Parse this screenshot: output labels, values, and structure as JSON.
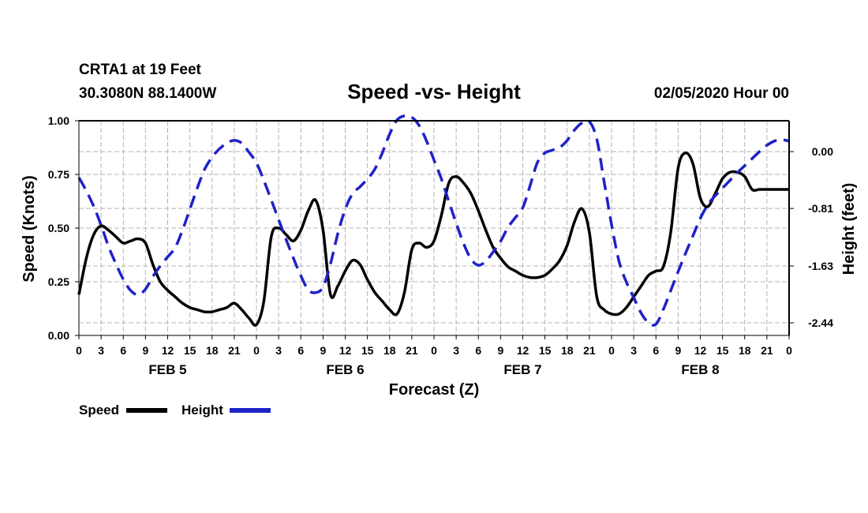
{
  "header": {
    "station_line": "CRTA1 at 19 Feet",
    "coords_line": "30.3080N 88.1400W",
    "date_line": "02/05/2020 Hour 00"
  },
  "legend": {
    "speed_label": "Speed",
    "height_label": "Height"
  },
  "colors": {
    "speed": "#000000",
    "height": "#1f22c8",
    "grid": "#b4b4b4"
  },
  "chart_data": {
    "type": "line",
    "title": "Speed -vs- Height",
    "xlabel": "Forecast (Z)",
    "ylabel": "Speed (Knots)",
    "y2label": "Height (feet)",
    "xlim": [
      0,
      96
    ],
    "ylim": [
      0,
      1.0
    ],
    "y2lim": [
      -2.62,
      0.44
    ],
    "x_ticks": [
      0,
      3,
      6,
      9,
      12,
      15,
      18,
      21,
      24,
      27,
      30,
      33,
      36,
      39,
      42,
      45,
      48,
      51,
      54,
      57,
      60,
      63,
      66,
      69,
      72,
      75,
      78,
      81,
      84,
      87,
      90,
      93,
      96
    ],
    "x_tick_labels": [
      "0",
      "3",
      "6",
      "9",
      "12",
      "15",
      "18",
      "21",
      "0",
      "3",
      "6",
      "9",
      "12",
      "15",
      "18",
      "21",
      "0",
      "3",
      "6",
      "9",
      "12",
      "15",
      "18",
      "21",
      "0",
      "3",
      "6",
      "9",
      "12",
      "15",
      "18",
      "21",
      "0"
    ],
    "day_labels": [
      {
        "x": 12,
        "label": "FEB 5"
      },
      {
        "x": 36,
        "label": "FEB 6"
      },
      {
        "x": 60,
        "label": "FEB 7"
      },
      {
        "x": 84,
        "label": "FEB 8"
      }
    ],
    "y_ticks": [
      0.0,
      0.25,
      0.5,
      0.75,
      1.0
    ],
    "y_tick_labels": [
      "0.00",
      "0.25",
      "0.50",
      "0.75",
      "1.00"
    ],
    "y2_ticks": [
      0.0,
      -0.81,
      -1.63,
      -2.44
    ],
    "y2_tick_labels": [
      "0.00",
      "-0.81",
      "-1.63",
      "-2.44"
    ],
    "grid": true,
    "legend_position": "bottom-left",
    "series": [
      {
        "name": "Speed",
        "axis": "left",
        "style": "solid",
        "x": [
          0,
          1,
          2,
          3,
          4,
          5,
          6,
          7,
          8,
          9,
          10,
          11,
          12,
          13,
          14,
          15,
          16,
          17,
          18,
          19,
          20,
          21,
          22,
          23,
          24,
          25,
          26,
          27,
          28,
          29,
          30,
          31,
          32,
          33,
          34,
          35,
          36,
          37,
          38,
          39,
          40,
          41,
          42,
          43,
          44,
          45,
          46,
          47,
          48,
          49,
          50,
          51,
          52,
          53,
          54,
          55,
          56,
          57,
          58,
          59,
          60,
          61,
          62,
          63,
          64,
          65,
          66,
          67,
          68,
          69,
          70,
          71,
          72,
          73,
          74,
          75,
          76,
          77,
          78,
          79,
          80,
          81,
          82,
          83,
          84,
          85,
          86,
          87,
          88,
          89,
          90,
          91,
          92,
          93,
          94,
          95,
          96
        ],
        "values": [
          0.19,
          0.36,
          0.47,
          0.51,
          0.49,
          0.46,
          0.43,
          0.44,
          0.45,
          0.43,
          0.33,
          0.25,
          0.21,
          0.18,
          0.15,
          0.13,
          0.12,
          0.11,
          0.11,
          0.12,
          0.13,
          0.15,
          0.12,
          0.08,
          0.05,
          0.16,
          0.46,
          0.5,
          0.47,
          0.44,
          0.49,
          0.58,
          0.63,
          0.49,
          0.19,
          0.23,
          0.3,
          0.35,
          0.33,
          0.26,
          0.2,
          0.16,
          0.12,
          0.1,
          0.2,
          0.4,
          0.43,
          0.41,
          0.44,
          0.56,
          0.71,
          0.74,
          0.71,
          0.66,
          0.58,
          0.49,
          0.41,
          0.36,
          0.32,
          0.3,
          0.28,
          0.27,
          0.27,
          0.28,
          0.31,
          0.35,
          0.42,
          0.53,
          0.59,
          0.48,
          0.18,
          0.12,
          0.1,
          0.1,
          0.13,
          0.18,
          0.23,
          0.28,
          0.3,
          0.32,
          0.48,
          0.78,
          0.85,
          0.8,
          0.64,
          0.6,
          0.66,
          0.73,
          0.76,
          0.76,
          0.74,
          0.68,
          0.68,
          0.68,
          0.68,
          0.68,
          0.68
        ]
      },
      {
        "name": "Height",
        "axis": "right",
        "style": "dashed",
        "x": [
          0,
          1,
          2,
          3,
          4,
          5,
          6,
          7,
          8,
          9,
          10,
          11,
          12,
          13,
          14,
          15,
          16,
          17,
          18,
          19,
          20,
          21,
          22,
          23,
          24,
          25,
          26,
          27,
          28,
          29,
          30,
          31,
          32,
          33,
          34,
          35,
          36,
          37,
          38,
          39,
          40,
          41,
          42,
          43,
          44,
          45,
          46,
          47,
          48,
          49,
          50,
          51,
          52,
          53,
          54,
          55,
          56,
          57,
          58,
          59,
          60,
          61,
          62,
          63,
          64,
          65,
          66,
          67,
          68,
          69,
          70,
          71,
          72,
          73,
          74,
          75,
          76,
          77,
          78,
          79,
          80,
          81,
          82,
          83,
          84,
          85,
          86,
          87,
          88,
          89,
          90,
          91,
          92,
          93,
          94,
          95,
          96
        ],
        "values": [
          -0.37,
          -0.56,
          -0.78,
          -1.05,
          -1.35,
          -1.6,
          -1.82,
          -1.98,
          -2.04,
          -1.96,
          -1.78,
          -1.63,
          -1.5,
          -1.37,
          -1.12,
          -0.82,
          -0.52,
          -0.25,
          -0.08,
          0.04,
          0.12,
          0.16,
          0.12,
          -0.01,
          -0.16,
          -0.41,
          -0.69,
          -0.97,
          -1.25,
          -1.52,
          -1.77,
          -1.97,
          -2.01,
          -1.93,
          -1.6,
          -1.17,
          -0.82,
          -0.6,
          -0.5,
          -0.39,
          -0.25,
          -0.02,
          0.25,
          0.45,
          0.51,
          0.49,
          0.37,
          0.15,
          -0.12,
          -0.39,
          -0.71,
          -1.02,
          -1.31,
          -1.53,
          -1.62,
          -1.56,
          -1.43,
          -1.28,
          -1.08,
          -0.94,
          -0.8,
          -0.48,
          -0.15,
          -0.02,
          0.02,
          0.06,
          0.16,
          0.31,
          0.41,
          0.43,
          0.18,
          -0.43,
          -1.04,
          -1.56,
          -1.86,
          -2.08,
          -2.3,
          -2.44,
          -2.46,
          -2.25,
          -1.98,
          -1.71,
          -1.45,
          -1.2,
          -0.95,
          -0.76,
          -0.63,
          -0.52,
          -0.41,
          -0.3,
          -0.2,
          -0.1,
          0.0,
          0.09,
          0.15,
          0.17,
          0.15
        ]
      }
    ]
  }
}
